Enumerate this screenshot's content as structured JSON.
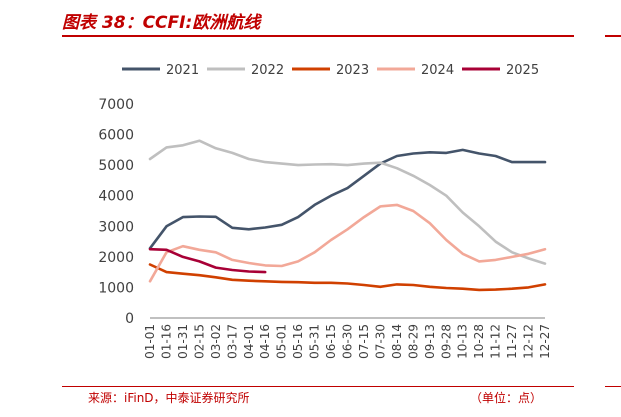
{
  "figure": {
    "title": "图表 38：CCFI:欧洲航线",
    "source": "来源：iFinD，中泰证券研究所",
    "unit": "（单位：点）"
  },
  "chart_data": {
    "type": "line",
    "title": "",
    "xlabel": "",
    "ylabel": "",
    "ylim": [
      0,
      7000
    ],
    "yticks": [
      "0",
      "1000",
      "2000",
      "3000",
      "4000",
      "5000",
      "6000",
      "7000"
    ],
    "categories": [
      "01-01",
      "01-16",
      "01-31",
      "02-15",
      "03-02",
      "03-17",
      "04-01",
      "04-16",
      "05-01",
      "05-16",
      "05-31",
      "06-15",
      "06-30",
      "07-15",
      "07-30",
      "08-14",
      "08-29",
      "09-13",
      "09-28",
      "10-13",
      "10-28",
      "11-12",
      "11-27",
      "12-12",
      "12-27"
    ],
    "legend_position": "top",
    "grid": false,
    "series": [
      {
        "name": "2021",
        "color": "#44546a",
        "values": [
          2280,
          3000,
          3300,
          3320,
          3310,
          2950,
          2900,
          2960,
          3050,
          3300,
          3700,
          4000,
          4250,
          4650,
          5050,
          5300,
          5380,
          5420,
          5400,
          5500,
          5380,
          5300,
          5100,
          5100,
          5100
        ]
      },
      {
        "name": "2022",
        "color": "#bfbfbf",
        "values": [
          5200,
          5580,
          5650,
          5800,
          5550,
          5400,
          5200,
          5100,
          5050,
          5000,
          5020,
          5030,
          5000,
          5050,
          5080,
          4900,
          4650,
          4350,
          4000,
          3450,
          3000,
          2500,
          2150,
          1950,
          1780
        ]
      },
      {
        "name": "2023",
        "color": "#d04000",
        "values": [
          1750,
          1500,
          1450,
          1400,
          1330,
          1250,
          1220,
          1200,
          1180,
          1170,
          1150,
          1150,
          1130,
          1080,
          1020,
          1100,
          1080,
          1020,
          980,
          960,
          920,
          930,
          960,
          1000,
          1100
        ]
      },
      {
        "name": "2024",
        "color": "#f2a898",
        "values": [
          1200,
          2150,
          2350,
          2230,
          2150,
          1900,
          1800,
          1720,
          1700,
          1850,
          2150,
          2550,
          2900,
          3300,
          3650,
          3700,
          3500,
          3100,
          2550,
          2100,
          1850,
          1900,
          2000,
          2100,
          2250
        ]
      },
      {
        "name": "2025",
        "color": "#a80036",
        "values": [
          2250,
          2230,
          2000,
          1850,
          1650,
          1570,
          1520,
          1500,
          null,
          null,
          null,
          null,
          null,
          null,
          null,
          null,
          null,
          null,
          null,
          null,
          null,
          null,
          null,
          null,
          null
        ]
      }
    ]
  }
}
